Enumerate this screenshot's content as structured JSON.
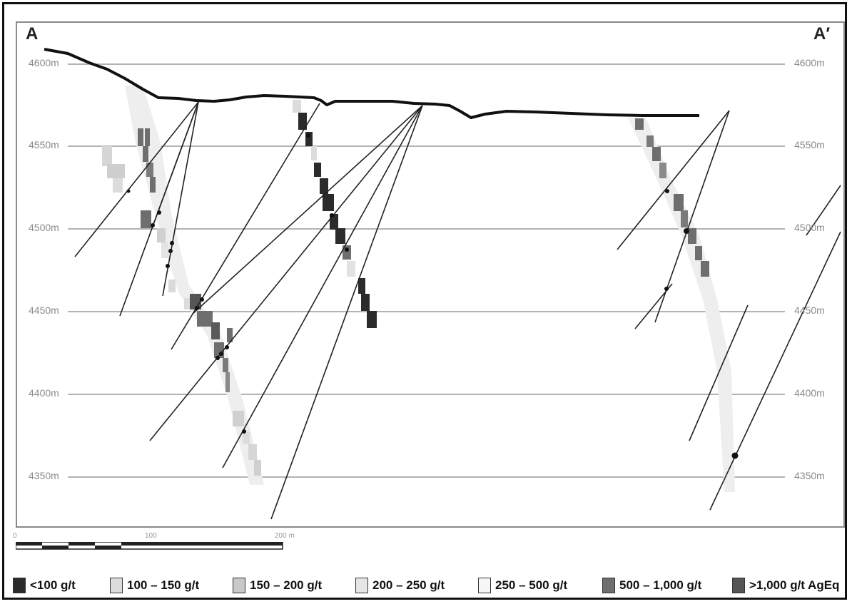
{
  "section": {
    "start_label": "A",
    "end_label": "A′",
    "elevations_left": [
      "4600m",
      "4550m",
      "4500m",
      "4450m",
      "4400m",
      "4350m"
    ],
    "elevations_right": [
      "4600m",
      "4550m",
      "4500m",
      "4450m",
      "4400m",
      "4350m"
    ]
  },
  "scale": {
    "ticks": [
      "0",
      "100",
      "200 m"
    ]
  },
  "legend": [
    {
      "label": "<100 g/t",
      "color": "#2b2b2b"
    },
    {
      "label": "100 – 150 g/t",
      "color": "#dcdcdc"
    },
    {
      "label": "150 – 200 g/t",
      "color": "#c8c8c8"
    },
    {
      "label": "200 – 250 g/t",
      "color": "#e6e6e6"
    },
    {
      "label": "250 – 500 g/t",
      "color": "#f7f7f7"
    },
    {
      "label": "500 – 1,000 g/t",
      "color": "#6e6e6e"
    },
    {
      "label": ">1,000 g/t AgEq",
      "color": "#555555"
    }
  ]
}
